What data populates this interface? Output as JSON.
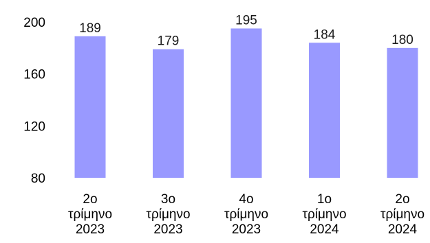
{
  "chart_data": {
    "type": "bar",
    "title": "",
    "xlabel": "",
    "ylabel": "",
    "categories": [
      [
        "2ο",
        "τρίμηνο",
        "2023"
      ],
      [
        "3ο",
        "τρίμηνο",
        "2023"
      ],
      [
        "4ο",
        "τρίμηνο",
        "2023"
      ],
      [
        "1ο",
        "τρίμηνο",
        "2024"
      ],
      [
        "2ο",
        "τρίμηνο",
        "2024"
      ]
    ],
    "values": [
      189,
      179,
      195,
      184,
      180
    ],
    "ylim": [
      80,
      200
    ],
    "yticks": [
      80,
      120,
      160,
      200
    ],
    "grid": false,
    "legend": "none",
    "bar_color": "#9999ff"
  }
}
